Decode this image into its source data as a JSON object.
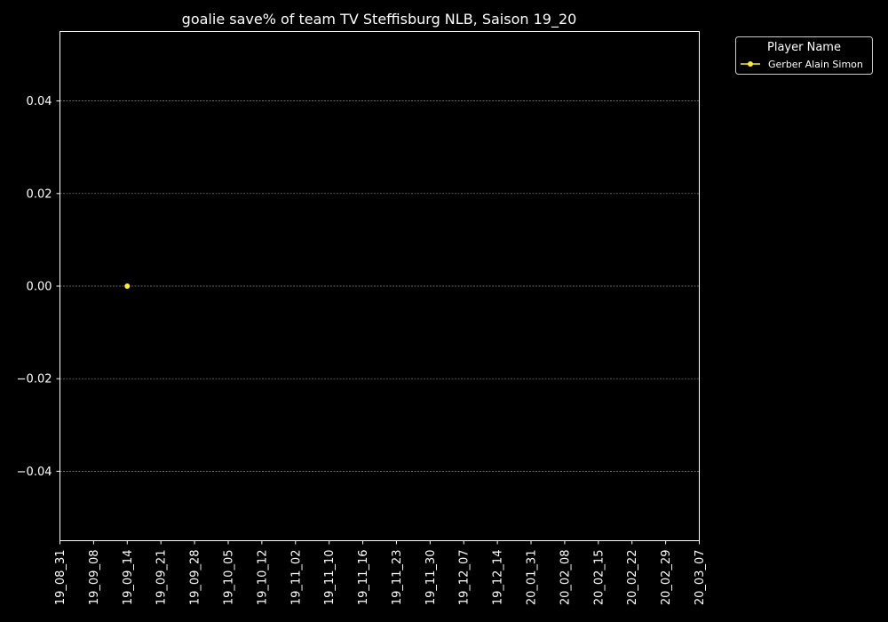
{
  "chart_data": {
    "type": "line",
    "title": "goalie save% of team TV Steffisburg NLB, Saison 19_20",
    "xlabel": "",
    "ylabel": "",
    "x_ticks": [
      "19_08_31",
      "19_09_08",
      "19_09_14",
      "19_09_21",
      "19_09_28",
      "19_10_05",
      "19_10_12",
      "19_11_02",
      "19_11_10",
      "19_11_16",
      "19_11_23",
      "19_11_30",
      "19_12_07",
      "19_12_14",
      "20_01_31",
      "20_02_08",
      "20_02_15",
      "20_02_22",
      "20_02_29",
      "20_03_07"
    ],
    "y_ticks": [
      "−0.04",
      "−0.02",
      "0.00",
      "0.02",
      "0.04"
    ],
    "y_tick_values": [
      -0.04,
      -0.02,
      0.0,
      0.02,
      0.04
    ],
    "ylim": [
      -0.055,
      0.055
    ],
    "grid": true,
    "legend": {
      "title": "Player Name",
      "placement": "outside-top-right"
    },
    "series": [
      {
        "name": "Gerber Alain Simon",
        "color": "#ffeb3b",
        "points": [
          {
            "x": "19_09_14",
            "y": 0.0
          }
        ]
      }
    ]
  }
}
